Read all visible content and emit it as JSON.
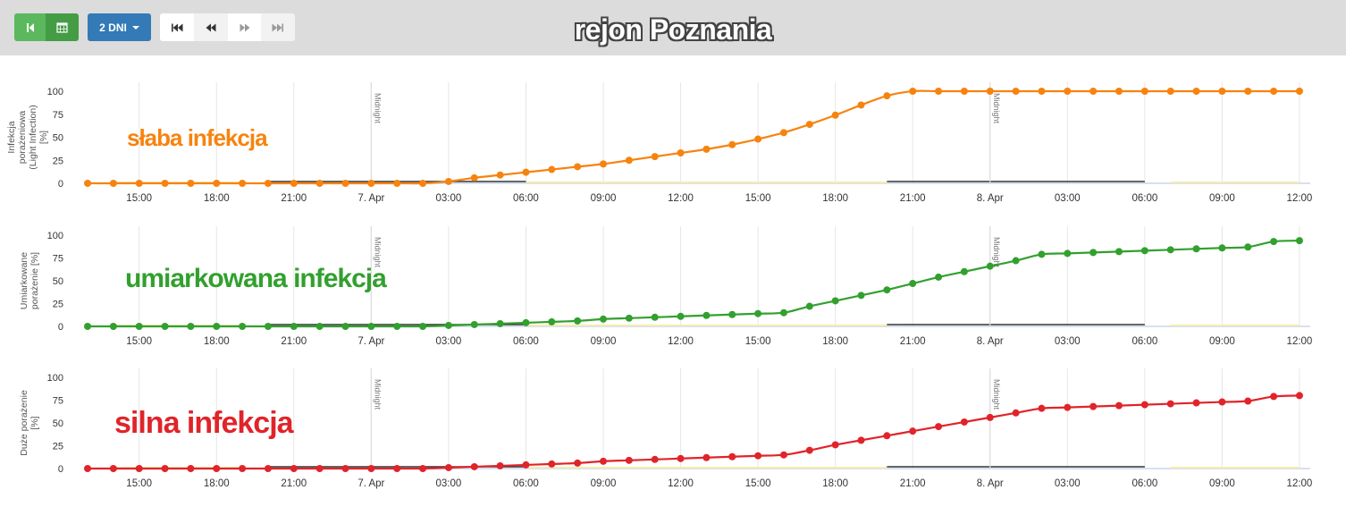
{
  "header": {
    "title": "rejon Poznania",
    "range_label": "2 DNI"
  },
  "icons": {
    "back": "step-backward-icon",
    "calendar": "calendar-icon",
    "first": "fast-backward-icon",
    "prev": "backward-icon",
    "next": "forward-icon",
    "last": "fast-forward-icon"
  },
  "chart_data": [
    {
      "type": "line",
      "overlay_label": "słaba infekcja",
      "ylabel": "Infekcja porażeniowa (Light Infection) [%]",
      "color": "#f7830f",
      "ylim": [
        0,
        100
      ],
      "yticks": [
        "100",
        "75",
        "50",
        "25",
        "0"
      ],
      "xtick_labels": [
        "15:00",
        "18:00",
        "21:00",
        "7. Apr",
        "03:00",
        "06:00",
        "09:00",
        "12:00",
        "15:00",
        "18:00",
        "21:00",
        "8. Apr",
        "03:00",
        "06:00",
        "09:00",
        "12:00"
      ],
      "midnight_label": "Midnight",
      "series": [
        {
          "x_start_hour": 13,
          "values": [
            0,
            0,
            0,
            0,
            0,
            0,
            0,
            0,
            0,
            0,
            0,
            0,
            0,
            0,
            2,
            6,
            9,
            12,
            15,
            18,
            21,
            25,
            29,
            33,
            37,
            42,
            48,
            55,
            64,
            74,
            85,
            95,
            100,
            100,
            100,
            100,
            100,
            100,
            100,
            100,
            100,
            100,
            100,
            100,
            100,
            100,
            100,
            100
          ]
        }
      ]
    },
    {
      "type": "line",
      "overlay_label": "umiarkowana infekcja",
      "ylabel": "Umiarkowane porażenie [%]",
      "color": "#32a02e",
      "ylim": [
        0,
        100
      ],
      "yticks": [
        "100",
        "75",
        "50",
        "25",
        "0"
      ],
      "xtick_labels": [
        "15:00",
        "18:00",
        "21:00",
        "7. Apr",
        "03:00",
        "06:00",
        "09:00",
        "12:00",
        "15:00",
        "18:00",
        "21:00",
        "8. Apr",
        "03:00",
        "06:00",
        "09:00",
        "12:00"
      ],
      "midnight_label": "Midnight",
      "series": [
        {
          "x_start_hour": 13,
          "values": [
            0,
            0,
            0,
            0,
            0,
            0,
            0,
            0,
            0,
            0,
            0,
            0,
            0,
            0,
            1,
            2,
            3,
            4,
            5,
            6,
            8,
            9,
            10,
            11,
            12,
            13,
            14,
            15,
            22,
            28,
            34,
            40,
            47,
            54,
            60,
            66,
            72,
            79,
            80,
            81,
            82,
            83,
            84,
            85,
            86,
            87,
            93,
            94
          ]
        }
      ]
    },
    {
      "type": "line",
      "overlay_label": "silna infekcja",
      "ylabel": "Duże porażenie [%]",
      "color": "#e0242a",
      "ylim": [
        0,
        100
      ],
      "yticks": [
        "100",
        "75",
        "50",
        "25",
        "0"
      ],
      "xtick_labels": [
        "15:00",
        "18:00",
        "21:00",
        "7. Apr",
        "03:00",
        "06:00",
        "09:00",
        "12:00",
        "15:00",
        "18:00",
        "21:00",
        "8. Apr",
        "03:00",
        "06:00",
        "09:00",
        "12:00"
      ],
      "midnight_label": "Midnight",
      "series": [
        {
          "x_start_hour": 13,
          "values": [
            0,
            0,
            0,
            0,
            0,
            0,
            0,
            0,
            0,
            0,
            0,
            0,
            0,
            0,
            1,
            2,
            3,
            4,
            5,
            6,
            8,
            9,
            10,
            11,
            12,
            13,
            14,
            15,
            20,
            26,
            31,
            36,
            41,
            46,
            51,
            56,
            61,
            66,
            67,
            68,
            69,
            70,
            71,
            72,
            73,
            74,
            79,
            80
          ]
        }
      ]
    }
  ]
}
